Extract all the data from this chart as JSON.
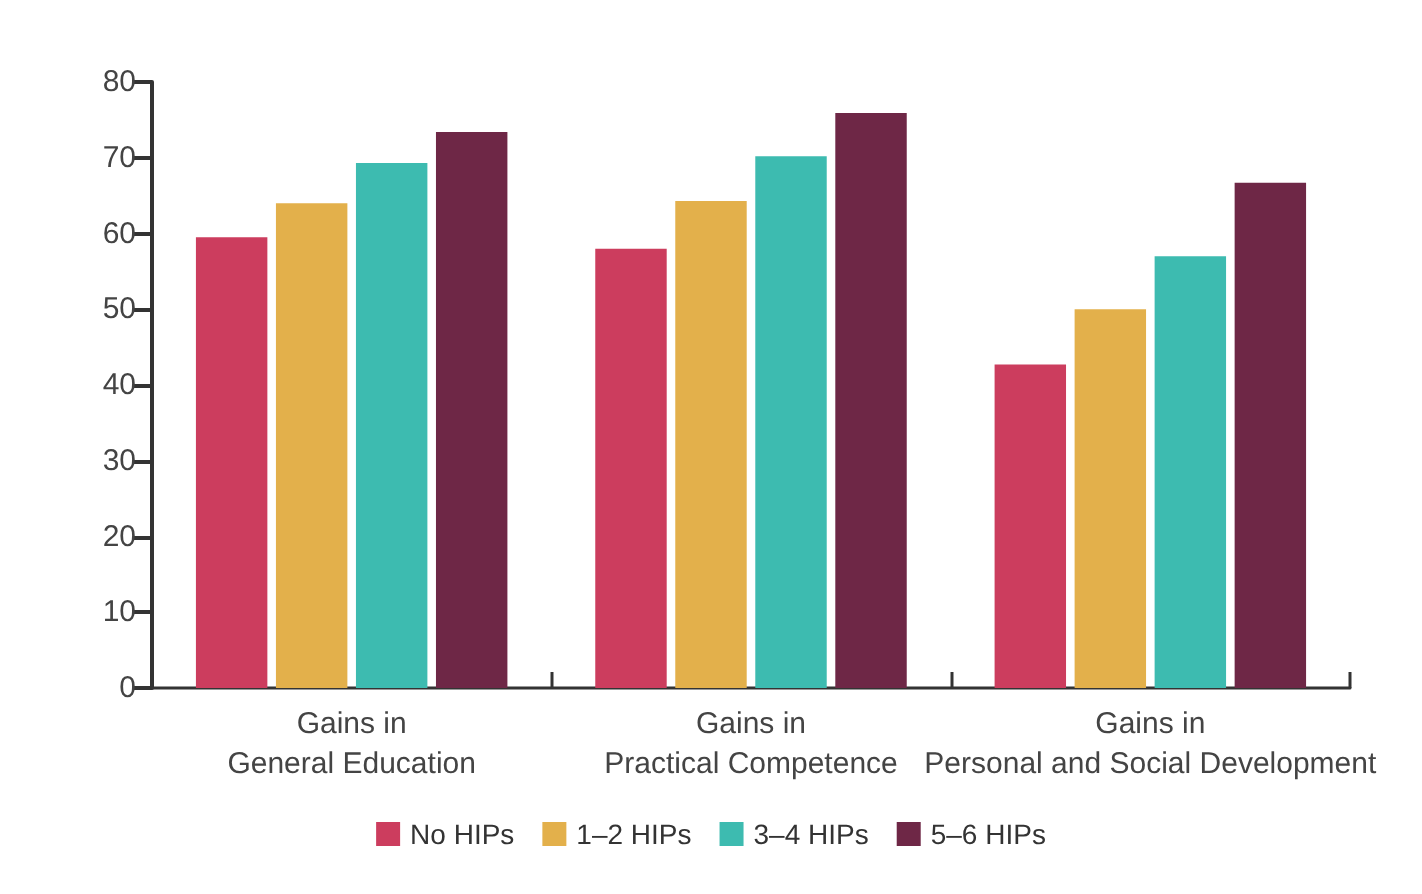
{
  "chart_data": {
    "type": "bar",
    "categories": [
      "Gains in\nGeneral Education",
      "Gains in\nPractical Competence",
      "Gains in\nPersonal and Social Development"
    ],
    "series": [
      {
        "name": "No HIPs",
        "color": "#cc3d5e",
        "values": [
          59.5,
          58,
          42.7
        ]
      },
      {
        "name": "1–2 HIPs",
        "color": "#e3b04b",
        "values": [
          64,
          64.3,
          50
        ]
      },
      {
        "name": "3–4 HIPs",
        "color": "#3dbbb0",
        "values": [
          69.3,
          70.2,
          57
        ]
      },
      {
        "name": "5–6 HIPs",
        "color": "#6e2746",
        "values": [
          73.4,
          75.9,
          66.7
        ]
      }
    ],
    "ylim": [
      0,
      80
    ],
    "yticks": [
      0,
      10,
      20,
      30,
      40,
      50,
      60,
      70,
      80
    ],
    "grid": false,
    "legend": "bottom"
  }
}
